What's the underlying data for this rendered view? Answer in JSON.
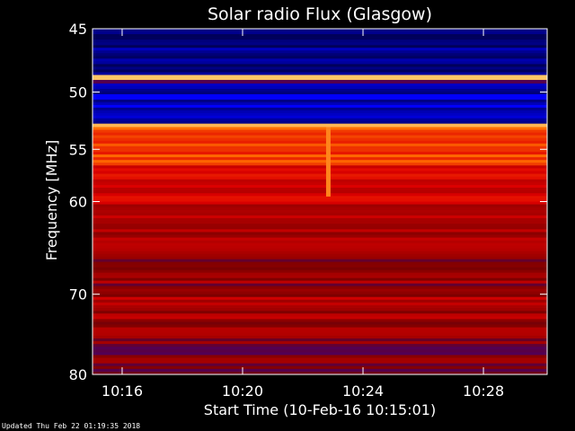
{
  "chart_data": {
    "type": "heatmap",
    "title": "Solar radio Flux (Glasgow)",
    "xlabel": "Start Time (10-Feb-16 10:15:01)",
    "ylabel": "Frequency [MHz]",
    "x_range_minutes": [
      10.25,
      10.51
    ],
    "x_ticks": [
      "10:16",
      "10:20",
      "10:24",
      "10:28"
    ],
    "y_ticks": [
      45,
      50,
      55,
      60,
      70,
      80
    ],
    "ylim": [
      45,
      80
    ],
    "y_scale": "log",
    "colormap": [
      "#00005a",
      "#0000ff",
      "#7a0000",
      "#e00000",
      "#ff6a00",
      "#ffd070"
    ],
    "bands": [
      {
        "from": 45,
        "to": 48.6,
        "level": 0.05
      },
      {
        "from": 48.6,
        "to": 49.0,
        "level": 0.98
      },
      {
        "from": 49.0,
        "to": 49.3,
        "level": 0.4
      },
      {
        "from": 49.3,
        "to": 52.7,
        "level": 0.12
      },
      {
        "from": 52.7,
        "to": 53.0,
        "level": 0.95
      },
      {
        "from": 53.0,
        "to": 56.5,
        "level": 0.72
      },
      {
        "from": 56.5,
        "to": 60.0,
        "level": 0.6
      },
      {
        "from": 60.0,
        "to": 64.0,
        "level": 0.5
      },
      {
        "from": 64.0,
        "to": 70.0,
        "level": 0.45
      },
      {
        "from": 70.0,
        "to": 75.0,
        "level": 0.48
      },
      {
        "from": 75.0,
        "to": 80.0,
        "level": 0.42
      }
    ],
    "burst": {
      "time": "10:22:50",
      "freq_from": 53,
      "freq_to": 59.5
    }
  },
  "footer": "Updated Thu Feb 22 01:19:35 2018"
}
